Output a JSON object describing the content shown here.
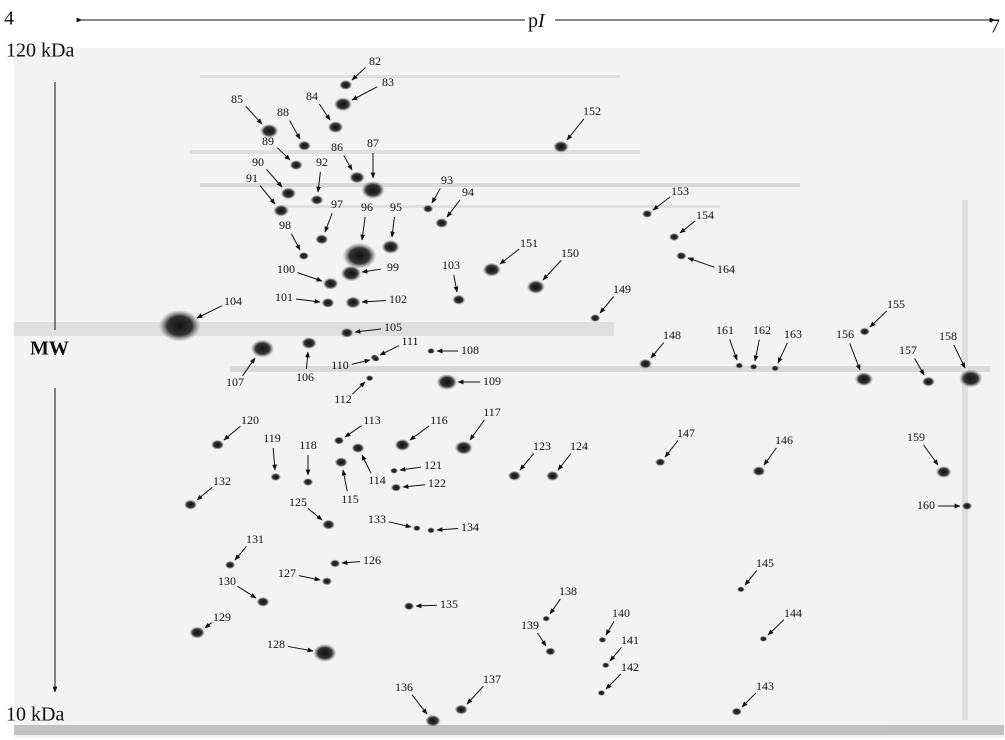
{
  "axis": {
    "left": "4",
    "center_p": "p",
    "center_i": "I",
    "right": "7"
  },
  "mw": {
    "top": "120 kDa",
    "label": "MW",
    "bottom": "10 kDa"
  },
  "spots": [
    "82",
    "83",
    "84",
    "85",
    "88",
    "89",
    "86",
    "87",
    "90",
    "92",
    "91",
    "93",
    "94",
    "97",
    "96",
    "95",
    "98",
    "151",
    "150",
    "103",
    "99",
    "100",
    "164",
    "149",
    "101",
    "102",
    "104",
    "155",
    "105",
    "148",
    "161",
    "162",
    "163",
    "156",
    "158",
    "157",
    "111",
    "108",
    "110",
    "107",
    "106",
    "109",
    "112",
    "117",
    "113",
    "116",
    "120",
    "147",
    "146",
    "159",
    "123",
    "124",
    "119",
    "118",
    "121",
    "114",
    "122",
    "132",
    "115",
    "160",
    "125",
    "133",
    "134",
    "131",
    "126",
    "127",
    "145",
    "130",
    "138",
    "135",
    "140",
    "144",
    "129",
    "139",
    "141",
    "128",
    "142",
    "137",
    "143",
    "136",
    "152",
    "153",
    "154"
  ]
}
